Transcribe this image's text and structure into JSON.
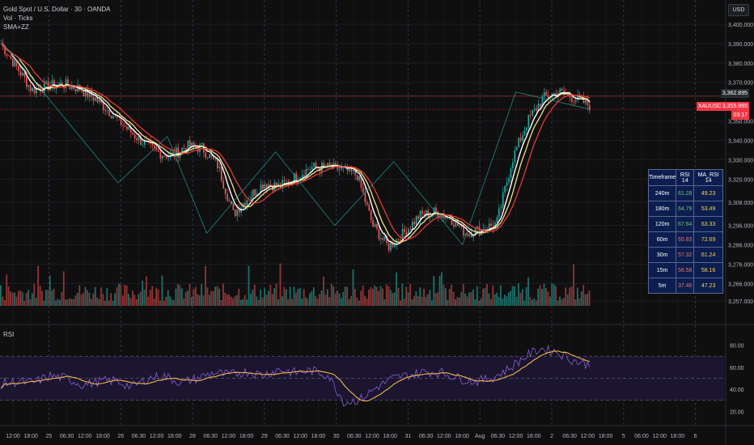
{
  "header": {
    "symbol_title": "Gold Spot / U.S. Dollar · 30 · OANDA",
    "indicator_vol": "Vol · Ticks",
    "indicator_sma": "SMA+ZZ",
    "currency_button": "USD"
  },
  "rsi_pane": {
    "label": "RSI"
  },
  "price_axis": {
    "ticks": [
      "3,400.000",
      "3,390.000",
      "3,380.000",
      "3,370.000",
      "3,350.000",
      "3,340.000",
      "3,330.000",
      "3,320.000",
      "3,308.000",
      "3,296.000",
      "3,286.000",
      "3,276.000",
      "3,266.000",
      "3,257.000"
    ],
    "last_price_label": "3,362.895",
    "current_symbol_tag": "XAUUSD",
    "current_price": "3,355.965",
    "countdown": "03:17"
  },
  "rsi_axis": {
    "ticks": [
      "80.00",
      "60.00",
      "40.00",
      "20.00"
    ]
  },
  "time_axis": {
    "ticks": [
      "12:00",
      "18:00",
      "25",
      "06:30",
      "12:00",
      "18:00",
      "26",
      "06:30",
      "12:00",
      "18:00",
      "28",
      "06:30",
      "12:00",
      "18:00",
      "29",
      "06:30",
      "12:00",
      "18:00",
      "30",
      "06:30",
      "12:00",
      "18:00",
      "31",
      "06:30",
      "12:00",
      "18:00",
      "Aug",
      "06:30",
      "12:00",
      "18:00",
      "2",
      "06:30",
      "12:00",
      "18:00",
      "5",
      "06:00",
      "12:00",
      "18:00",
      "6"
    ]
  },
  "timeframe_table": {
    "headers": [
      "Timeframe",
      "RSI 14",
      "MA_RSI 14"
    ],
    "rows": [
      {
        "tf": "240m",
        "rsi": "61.28",
        "ma": "49.23",
        "rsi_color": "g"
      },
      {
        "tf": "180m",
        "rsi": "64.79",
        "ma": "53.49",
        "rsi_color": "g"
      },
      {
        "tf": "120m",
        "rsi": "67.64",
        "ma": "63.33",
        "rsi_color": "g"
      },
      {
        "tf": "60m",
        "rsi": "65.83",
        "ma": "72.69",
        "rsi_color": "r"
      },
      {
        "tf": "30m",
        "rsi": "57.32",
        "ma": "61.24",
        "rsi_color": "r"
      },
      {
        "tf": "15m",
        "rsi": "56.58",
        "ma": "58.16",
        "rsi_color": "r"
      },
      {
        "tf": "5m",
        "rsi": "37.46",
        "ma": "47.23",
        "rsi_color": "r"
      }
    ]
  },
  "colors": {
    "up": "#26a69a",
    "down": "#ef5350",
    "sma_fast": "#ffffff",
    "sma_mid": "#f5e08a",
    "sma_slow": "#e53935",
    "rsi_line": "#7e57c2",
    "rsi_ma": "#f0b64a",
    "price_tag": "#f23645"
  },
  "chart_data": {
    "type": "candlestick",
    "ylim": [
      3257,
      3400
    ],
    "price_path": [
      3390,
      3378,
      3366,
      3368,
      3369,
      3367,
      3362,
      3355,
      3347,
      3340,
      3334,
      3332,
      3337,
      3336,
      3327,
      3302,
      3311,
      3318,
      3316,
      3321,
      3326,
      3326,
      3325,
      3322,
      3296,
      3285,
      3292,
      3301,
      3303,
      3300,
      3292,
      3294,
      3297,
      3330,
      3350,
      3362,
      3365,
      3362,
      3358
    ],
    "rsi_path": [
      45,
      47,
      46,
      52,
      50,
      44,
      47,
      48,
      42,
      50,
      52,
      46,
      50,
      55,
      53,
      56,
      53,
      58,
      55,
      57,
      53,
      28,
      31,
      42,
      50,
      53,
      56,
      55,
      50,
      47,
      50,
      58,
      69,
      77,
      74,
      66,
      62
    ]
  }
}
